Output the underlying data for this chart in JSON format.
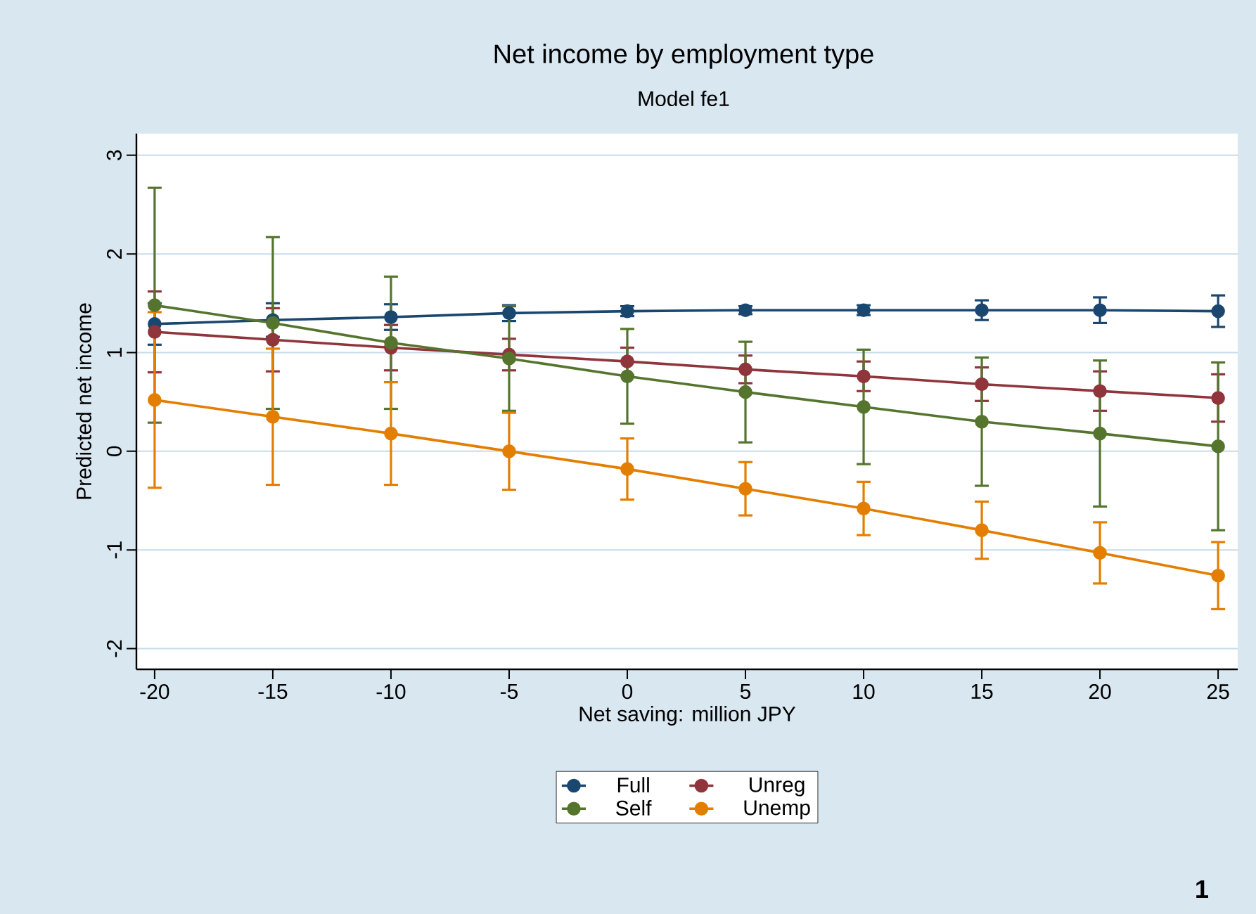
{
  "chart_data": {
    "type": "line",
    "title": "Net income by employment type",
    "subtitle": "Model fe1",
    "xlabel": "Net saving: million JPY",
    "ylabel": "Predicted net income",
    "x": [
      -20,
      -15,
      -10,
      -5,
      0,
      5,
      10,
      15,
      20,
      25
    ],
    "series": [
      {
        "name": "Full",
        "color": "#1a476f",
        "values": [
          1.29,
          1.33,
          1.36,
          1.4,
          1.42,
          1.43,
          1.43,
          1.43,
          1.43,
          1.42
        ],
        "errors": [
          0.21,
          0.17,
          0.13,
          0.08,
          0.05,
          0.04,
          0.05,
          0.1,
          0.13,
          0.16
        ]
      },
      {
        "name": "Unreg",
        "color": "#90353b",
        "values": [
          1.21,
          1.13,
          1.05,
          0.98,
          0.91,
          0.83,
          0.76,
          0.68,
          0.61,
          0.54
        ],
        "errors": [
          0.41,
          0.32,
          0.23,
          0.16,
          0.14,
          0.14,
          0.15,
          0.17,
          0.2,
          0.24
        ]
      },
      {
        "name": "Self",
        "color": "#55752f",
        "values": [
          1.48,
          1.3,
          1.1,
          0.94,
          0.76,
          0.6,
          0.45,
          0.3,
          0.18,
          0.05
        ],
        "errors": [
          1.19,
          0.87,
          0.67,
          0.53,
          0.48,
          0.51,
          0.58,
          0.65,
          0.74,
          0.85
        ]
      },
      {
        "name": "Unemp",
        "color": "#e37e00",
        "values": [
          0.52,
          0.35,
          0.18,
          0.0,
          -0.18,
          -0.38,
          -0.58,
          -0.8,
          -1.03,
          -1.26
        ],
        "errors": [
          0.89,
          0.69,
          0.52,
          0.39,
          0.31,
          0.27,
          0.27,
          0.29,
          0.31,
          0.34
        ]
      }
    ],
    "xlim": [
      -20.77,
      25.83
    ],
    "ylim": [
      -2.21,
      3.22
    ],
    "xticks": [
      -20,
      -15,
      -10,
      -5,
      0,
      5,
      10,
      15,
      20,
      25
    ],
    "yticks": [
      -2,
      -1,
      0,
      1,
      2,
      3
    ],
    "grid": "y",
    "legend": "bottom",
    "marker": "circle",
    "line_style": "solid",
    "annotations": [
      "1"
    ]
  }
}
